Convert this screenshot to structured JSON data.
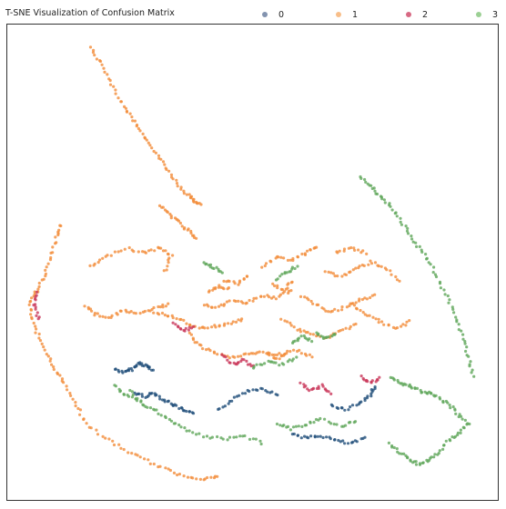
{
  "chart_data": {
    "type": "scatter",
    "title": "T-SNE Visualization of Confusion Matrix",
    "xlabel": "",
    "ylabel": "",
    "xlim": [
      0,
      100
    ],
    "ylim": [
      0,
      100
    ],
    "grid": false,
    "legend_position": "top",
    "series": [
      {
        "name": "0",
        "color": "#1f4e79",
        "paths": [
          [
            [
              22,
              27.5
            ],
            [
              24,
              26.8
            ],
            [
              25.5,
              27.6
            ],
            [
              27,
              28.8
            ],
            [
              28.5,
              28.2
            ],
            [
              29.5,
              27.2
            ]
          ],
          [
            [
              26,
              22.5
            ],
            [
              28,
              21.8
            ],
            [
              30,
              22.5
            ],
            [
              32,
              21
            ],
            [
              34,
              20
            ],
            [
              36,
              18.8
            ],
            [
              38,
              18
            ]
          ],
          [
            [
              43,
              19
            ],
            [
              46,
              21
            ],
            [
              49,
              23
            ],
            [
              52,
              23.5
            ],
            [
              55,
              22
            ]
          ],
          [
            [
              58,
              14
            ],
            [
              61,
              13
            ],
            [
              64,
              13.5
            ],
            [
              67,
              12.5
            ],
            [
              70,
              11.8
            ],
            [
              73,
              13
            ]
          ],
          [
            [
              66,
              20
            ],
            [
              69,
              19
            ],
            [
              72,
              20.5
            ],
            [
              74,
              22
            ],
            [
              75,
              24
            ]
          ]
        ]
      },
      {
        "name": "1",
        "color": "#f28c3a",
        "paths": [
          [
            [
              17,
              95
            ],
            [
              19,
              92
            ],
            [
              21,
              88
            ],
            [
              23,
              84
            ],
            [
              25,
              81
            ],
            [
              27,
              78
            ],
            [
              29,
              75
            ],
            [
              31,
              72
            ],
            [
              33,
              69
            ],
            [
              35,
              66
            ],
            [
              37,
              64
            ],
            [
              38,
              63
            ],
            [
              39.5,
              62
            ]
          ],
          [
            [
              11,
              58
            ],
            [
              10,
              55
            ],
            [
              9,
              51
            ],
            [
              7.5,
              47
            ],
            [
              6,
              44
            ],
            [
              4.5,
              41.5
            ],
            [
              5,
              38
            ],
            [
              6.5,
              34
            ],
            [
              8.5,
              30
            ],
            [
              10,
              27
            ],
            [
              12,
              24
            ],
            [
              14,
              20
            ],
            [
              16,
              16
            ],
            [
              20,
              13
            ],
            [
              24,
              10.5
            ],
            [
              28,
              8.5
            ],
            [
              32,
              6.5
            ],
            [
              36,
              5
            ],
            [
              40,
              4.5
            ],
            [
              43,
              4.8
            ]
          ],
          [
            [
              31,
              62
            ],
            [
              33,
              60
            ],
            [
              35,
              58.5
            ],
            [
              37,
              56.5
            ],
            [
              38.5,
              55
            ]
          ],
          [
            [
              17,
              49
            ],
            [
              20,
              51
            ],
            [
              24,
              53
            ],
            [
              28,
              52
            ],
            [
              31,
              53
            ],
            [
              33.5,
              51.5
            ],
            [
              32,
              48
            ]
          ],
          [
            [
              16,
              41
            ],
            [
              18,
              39
            ],
            [
              21,
              38.5
            ],
            [
              24,
              40
            ],
            [
              27,
              39
            ],
            [
              30,
              40.5
            ],
            [
              33,
              41
            ]
          ],
          [
            [
              30,
              39.5
            ],
            [
              33,
              38.8
            ],
            [
              36,
              37.5
            ],
            [
              39,
              36
            ],
            [
              42,
              36.5
            ],
            [
              45,
              37
            ],
            [
              48,
              38
            ]
          ],
          [
            [
              37,
              35
            ],
            [
              39,
              32.5
            ],
            [
              42,
              31
            ],
            [
              45,
              30
            ],
            [
              48,
              30.5
            ],
            [
              51,
              31
            ],
            [
              55,
              30.5
            ],
            [
              59,
              31.5
            ],
            [
              62,
              30
            ]
          ],
          [
            [
              40,
              41
            ],
            [
              43,
              40.5
            ],
            [
              46,
              42
            ],
            [
              49,
              41.5
            ],
            [
              52,
              43
            ],
            [
              55,
              42.5
            ],
            [
              58,
              44
            ]
          ],
          [
            [
              52,
              49
            ],
            [
              55,
              51
            ],
            [
              58,
              50.5
            ],
            [
              61,
              52
            ],
            [
              63,
              53
            ]
          ],
          [
            [
              60,
              43
            ],
            [
              63,
              41
            ],
            [
              66,
              39.5
            ],
            [
              69,
              40.5
            ],
            [
              72,
              42
            ],
            [
              75,
              43
            ]
          ],
          [
            [
              56,
              38
            ],
            [
              59,
              36
            ],
            [
              62,
              35
            ],
            [
              65,
              34
            ],
            [
              68,
              35.5
            ],
            [
              71,
              37
            ]
          ],
          [
            [
              65,
              48
            ],
            [
              68,
              47
            ],
            [
              71,
              48.5
            ],
            [
              74,
              50
            ],
            [
              77,
              49
            ],
            [
              80,
              46
            ]
          ],
          [
            [
              70,
              41
            ],
            [
              73,
              39
            ],
            [
              76,
              37.5
            ],
            [
              79,
              36
            ],
            [
              82,
              37.5
            ]
          ],
          [
            [
              54,
              45.5
            ],
            [
              56.5,
              44
            ],
            [
              58,
              46
            ]
          ],
          [
            [
              67,
              52
            ],
            [
              70,
              53
            ],
            [
              73,
              52
            ]
          ],
          [
            [
              53,
              31
            ],
            [
              55,
              29.5
            ],
            [
              57,
              31
            ]
          ],
          [
            [
              44,
              46
            ],
            [
              47,
              45.5
            ],
            [
              49,
              47
            ]
          ],
          [
            [
              41,
              44
            ],
            [
              43,
              45
            ],
            [
              45,
              44.5
            ]
          ]
        ]
      },
      {
        "name": "2",
        "color": "#c9375a",
        "paths": [
          [
            [
              44,
              30.5
            ],
            [
              46,
              28.5
            ],
            [
              48,
              29.5
            ],
            [
              50,
              28
            ]
          ],
          [
            [
              60,
              24.5
            ],
            [
              62,
              23
            ],
            [
              64,
              24
            ],
            [
              66,
              22.5
            ]
          ],
          [
            [
              72,
              26
            ],
            [
              74,
              24.5
            ],
            [
              76,
              25.5
            ]
          ],
          [
            [
              6,
              43.5
            ],
            [
              5.5,
              41
            ],
            [
              6.5,
              38
            ]
          ],
          [
            [
              34,
              37
            ],
            [
              36,
              35.5
            ],
            [
              38,
              36.5
            ]
          ]
        ]
      },
      {
        "name": "3",
        "color": "#5fa65a",
        "paths": [
          [
            [
              72,
              68
            ],
            [
              74,
              66
            ],
            [
              76,
              64
            ],
            [
              78,
              62
            ],
            [
              80,
              59
            ],
            [
              82,
              56
            ],
            [
              84,
              53
            ],
            [
              86,
              50
            ],
            [
              88,
              46
            ],
            [
              90,
              42
            ],
            [
              91.5,
              38
            ],
            [
              93,
              34
            ],
            [
              94,
              30
            ],
            [
              95,
              26
            ]
          ],
          [
            [
              78,
              26
            ],
            [
              80,
              24.5
            ],
            [
              82,
              24
            ],
            [
              84,
              23
            ],
            [
              86,
              22.5
            ],
            [
              88,
              21.5
            ],
            [
              90,
              20
            ],
            [
              92,
              18
            ],
            [
              94,
              16
            ],
            [
              92,
              14
            ],
            [
              90,
              12.5
            ],
            [
              88,
              10
            ],
            [
              86,
              8.5
            ],
            [
              84,
              7.5
            ],
            [
              82,
              8.5
            ],
            [
              80,
              10
            ],
            [
              78,
              12
            ]
          ],
          [
            [
              25,
              23
            ],
            [
              27.5,
              20
            ],
            [
              30,
              19
            ],
            [
              33,
              17
            ],
            [
              36,
              15
            ],
            [
              40,
              13.5
            ],
            [
              44,
              12.8
            ],
            [
              48,
              13.5
            ],
            [
              52,
              12
            ]
          ],
          [
            [
              55,
              16
            ],
            [
              58,
              15
            ],
            [
              61,
              16
            ],
            [
              64,
              17
            ],
            [
              68,
              15.5
            ],
            [
              71,
              16.5
            ]
          ],
          [
            [
              50,
              28
            ],
            [
              53,
              29
            ],
            [
              56,
              28.5
            ],
            [
              59,
              30
            ]
          ],
          [
            [
              58,
              33
            ],
            [
              60,
              34.5
            ],
            [
              62,
              33.5
            ]
          ],
          [
            [
              63,
              35
            ],
            [
              65,
              34
            ],
            [
              67,
              35
            ]
          ],
          [
            [
              40,
              50
            ],
            [
              42,
              49
            ],
            [
              44,
              48
            ]
          ],
          [
            [
              55,
              46.5
            ],
            [
              57,
              48
            ],
            [
              59,
              49
            ]
          ],
          [
            [
              22,
              24
            ],
            [
              24,
              22
            ],
            [
              27,
              21
            ]
          ]
        ]
      }
    ]
  }
}
